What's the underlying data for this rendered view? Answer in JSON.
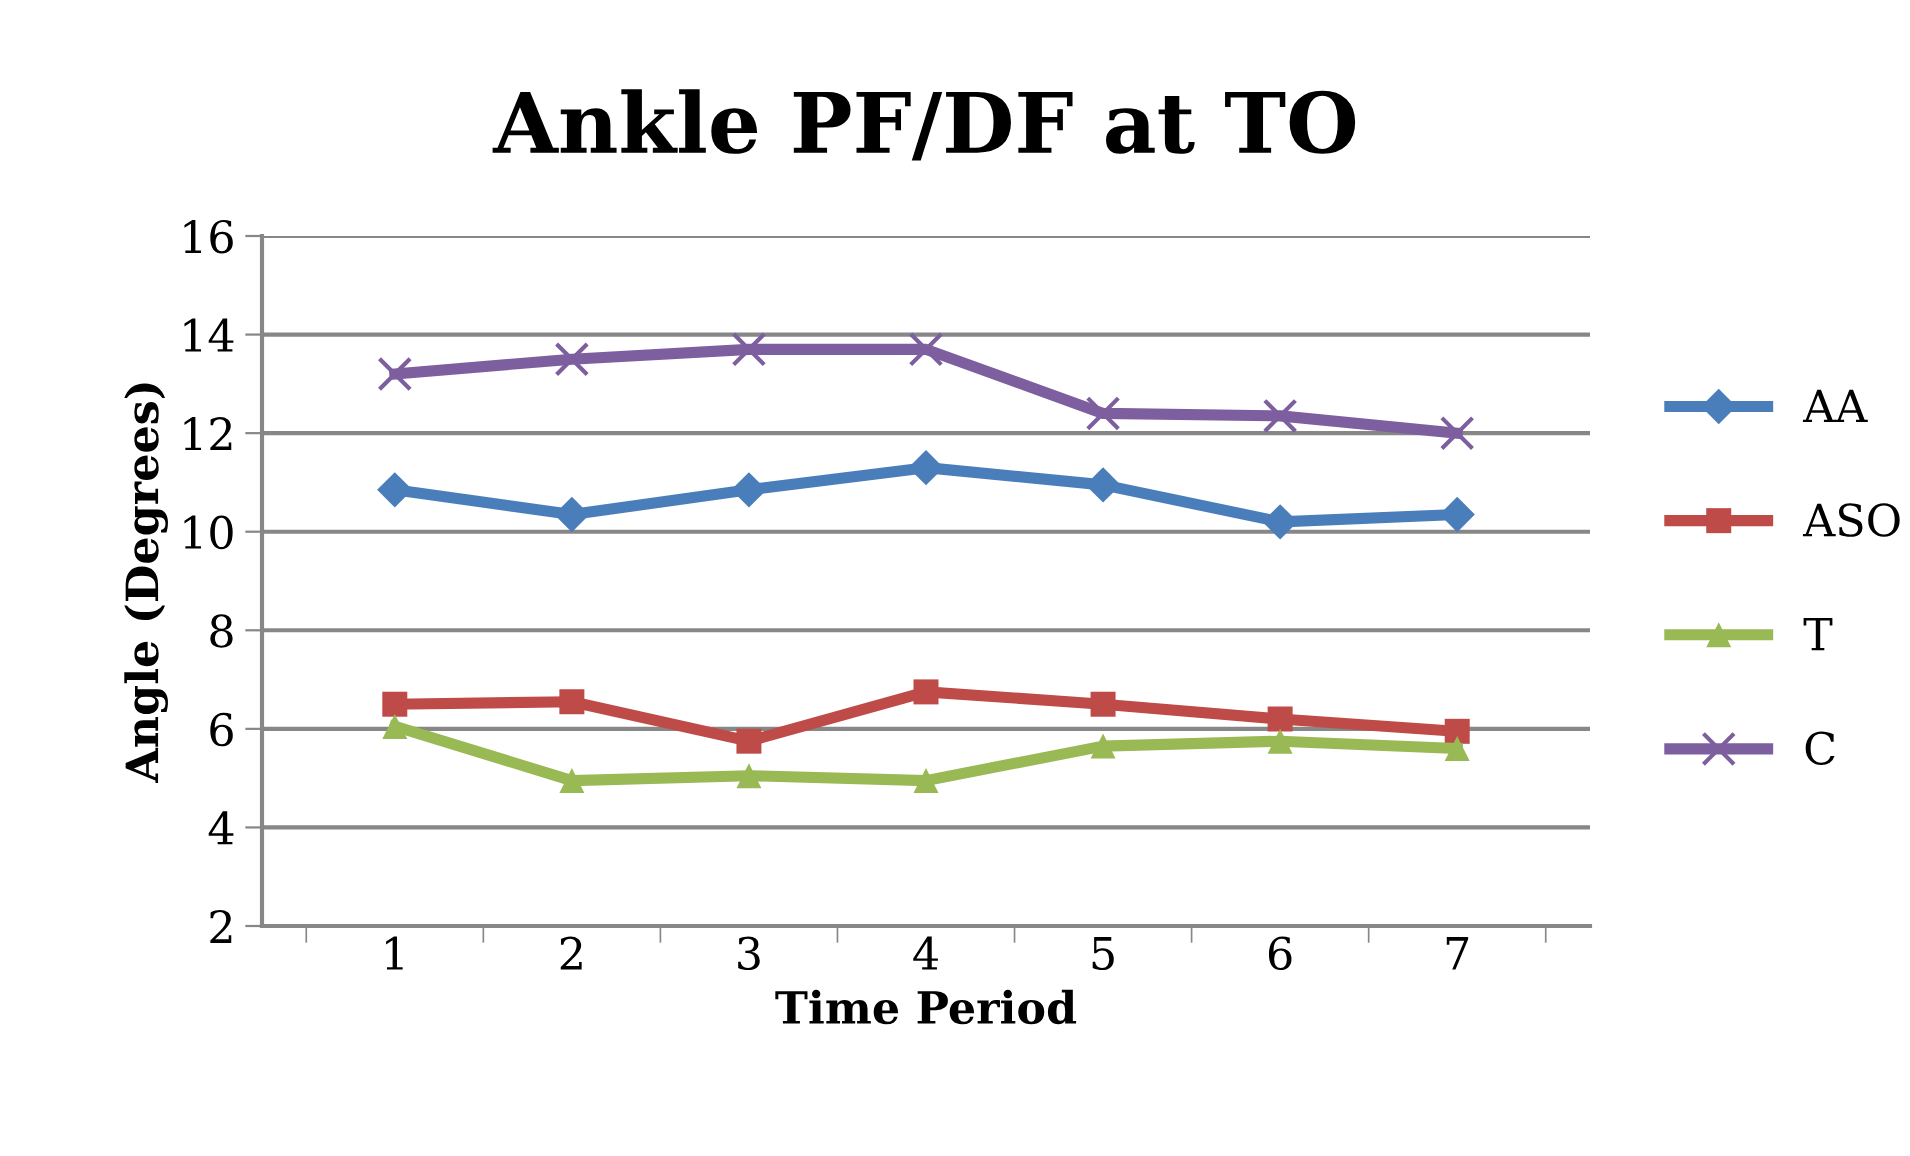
{
  "chart_data": {
    "type": "line",
    "title": "Ankle PF/DF at TO",
    "xlabel": "Time Period",
    "ylabel": "Angle (Degrees)",
    "categories": [
      "1",
      "2",
      "3",
      "4",
      "5",
      "6",
      "7"
    ],
    "series": [
      {
        "name": "AA",
        "color": "#4a7ebb",
        "marker": "diamond",
        "values": [
          10.85,
          10.35,
          10.85,
          11.3,
          10.95,
          10.2,
          10.35
        ]
      },
      {
        "name": "ASO",
        "color": "#be4b48",
        "marker": "square",
        "values": [
          6.5,
          6.55,
          5.75,
          6.75,
          6.5,
          6.2,
          5.95
        ]
      },
      {
        "name": "T",
        "color": "#98b954",
        "marker": "triangle",
        "values": [
          6.05,
          4.95,
          5.05,
          4.95,
          5.65,
          5.75,
          5.6
        ]
      },
      {
        "name": "C",
        "color": "#7d5fa0",
        "marker": "cross",
        "values": [
          13.2,
          13.5,
          13.7,
          13.7,
          12.4,
          12.35,
          12.0
        ]
      }
    ],
    "ylim": [
      2,
      16
    ],
    "yticks": [
      2,
      4,
      6,
      8,
      10,
      12,
      14,
      16
    ],
    "grid": "y",
    "legend": "right",
    "line_style": "solid"
  }
}
